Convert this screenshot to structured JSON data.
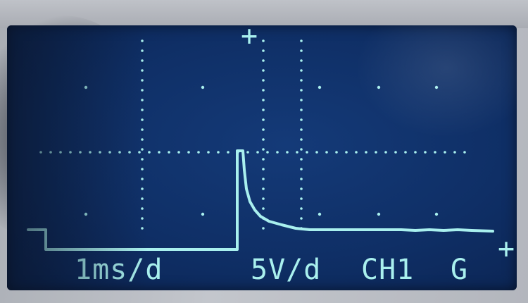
{
  "display": {
    "timebase": "1ms/d",
    "volts_per_div": "5V/d",
    "channel": "CH1",
    "coupling": "G",
    "trigger_marker": "+",
    "level_marker": "+"
  },
  "colors": {
    "screen_background": "#0f2f66",
    "trace": "#a9f0ee",
    "bezel": "#b9bcc2"
  },
  "icons": {
    "trigger_position": "plus-icon",
    "trigger_level": "plus-icon"
  }
}
